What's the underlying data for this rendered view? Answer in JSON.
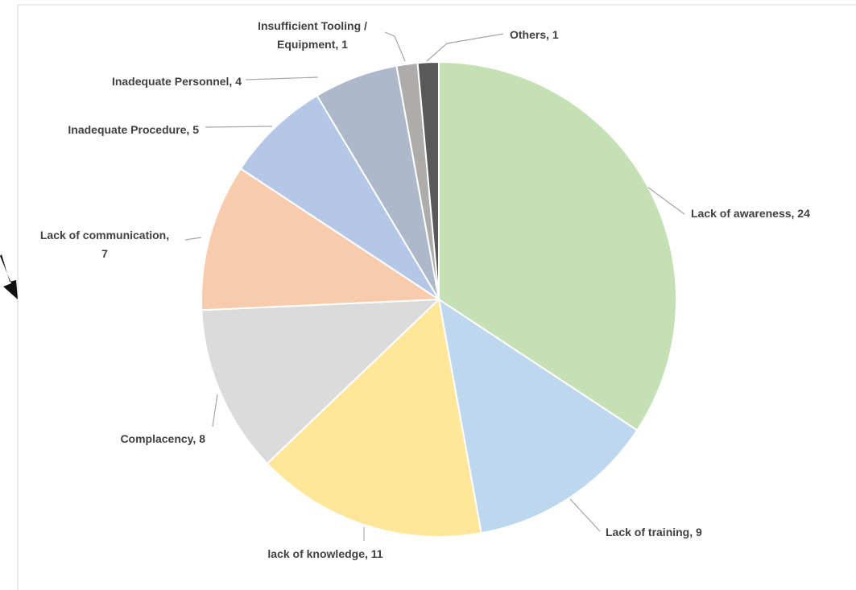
{
  "chart_data": {
    "type": "pie",
    "values": [
      24,
      9,
      11,
      8,
      7,
      5,
      4,
      1,
      1
    ],
    "value_labels": [
      "Lack of awareness, 24",
      "Lack of training, 9",
      "lack of knowledge, 11",
      "Complacency, 8",
      "Lack of communication,\n7",
      "Inadequate Procedure, 5",
      "Inadequate Personnel, 4",
      "Insufficient Tooling /\nEquipment, 1",
      "Others, 1"
    ],
    "colors": [
      "#c5e0b4",
      "#bdd7ee",
      "#ffe699",
      "#dbdbdb",
      "#f8cbad",
      "#b4c7e7",
      "#adb9ca",
      "#aeabab",
      "#595959"
    ]
  }
}
